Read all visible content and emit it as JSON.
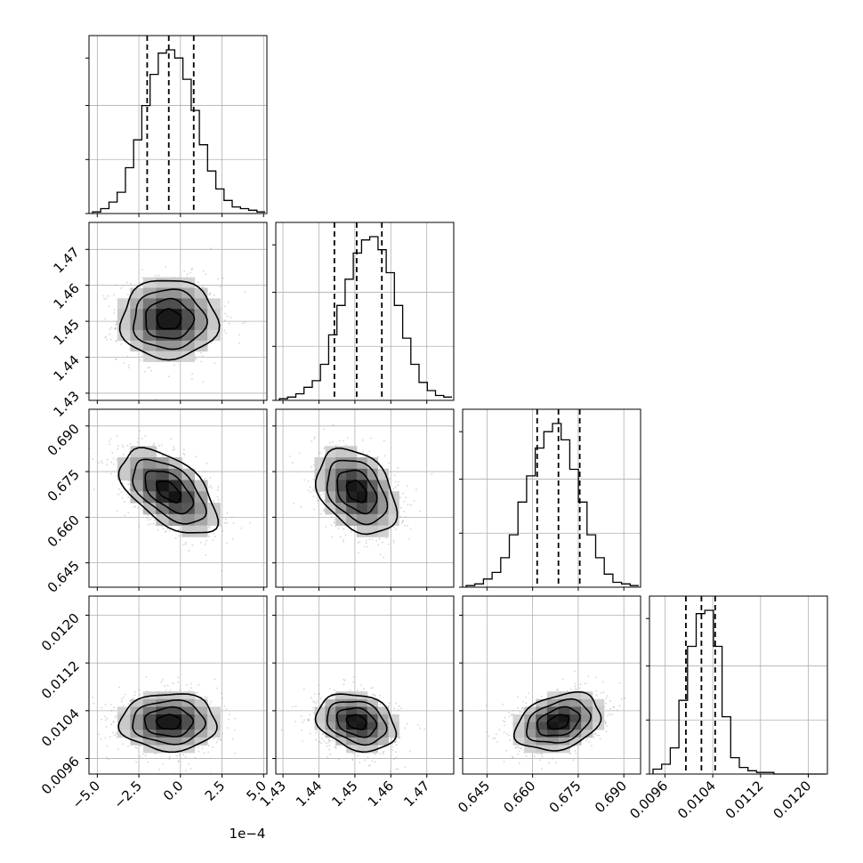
{
  "chart_data": {
    "type": "corner",
    "title": "",
    "grid": true,
    "parameters": [
      {
        "index": 0,
        "range": [
          -5.5,
          5.2
        ],
        "ticks": [
          -5,
          -2.5,
          0,
          2.5,
          5
        ],
        "tick_labels": [
          "−5.0",
          "−2.5",
          "0.0",
          "2.5",
          "5.0"
        ],
        "offset_label": "1e−4",
        "mean": -0.7,
        "quantiles": [
          -2.0,
          -0.7,
          0.8
        ],
        "sigma": 1.45,
        "hist": [
          0.01,
          0.03,
          0.07,
          0.13,
          0.28,
          0.45,
          0.66,
          0.85,
          0.98,
          1.0,
          0.95,
          0.82,
          0.63,
          0.42,
          0.26,
          0.15,
          0.08,
          0.04,
          0.03,
          0.02,
          0.01
        ]
      },
      {
        "index": 1,
        "range": [
          1.428,
          1.4775
        ],
        "ticks": [
          1.43,
          1.44,
          1.45,
          1.46,
          1.47
        ],
        "tick_labels": [
          "1.43",
          "1.44",
          "1.45",
          "1.46",
          "1.47"
        ],
        "mean": 1.4505,
        "quantiles": [
          1.4443,
          1.4505,
          1.4575
        ],
        "sigma": 0.0055,
        "hist": [
          0.01,
          0.02,
          0.04,
          0.08,
          0.12,
          0.22,
          0.4,
          0.58,
          0.74,
          0.9,
          0.98,
          1.0,
          0.92,
          0.78,
          0.58,
          0.38,
          0.22,
          0.11,
          0.06,
          0.03,
          0.02
        ]
      },
      {
        "index": 2,
        "range": [
          0.637,
          0.6955
        ],
        "ticks": [
          0.645,
          0.66,
          0.675,
          0.69
        ],
        "tick_labels": [
          "0.645",
          "0.660",
          "0.675",
          "0.690"
        ],
        "mean": 0.6685,
        "quantiles": [
          0.6615,
          0.6685,
          0.6755
        ],
        "sigma": 0.007,
        "hist": [
          0.01,
          0.02,
          0.05,
          0.09,
          0.18,
          0.32,
          0.52,
          0.68,
          0.85,
          0.95,
          1.0,
          0.9,
          0.72,
          0.52,
          0.32,
          0.18,
          0.08,
          0.03,
          0.02,
          0.01
        ]
      },
      {
        "index": 3,
        "range": [
          0.00934,
          0.01232
        ],
        "ticks": [
          0.0096,
          0.0104,
          0.0112,
          0.012
        ],
        "tick_labels": [
          "0.0096",
          "0.0104",
          "0.0112",
          "0.0120"
        ],
        "mean": 0.01021,
        "quantiles": [
          0.00995,
          0.01021,
          0.01044
        ],
        "sigma": 0.00024,
        "hist": [
          0.03,
          0.06,
          0.16,
          0.45,
          0.78,
          0.98,
          1.0,
          0.78,
          0.35,
          0.1,
          0.04,
          0.02,
          0.01,
          0.01,
          0.0,
          0.0,
          0.0,
          0.0,
          0.0,
          0.0
        ]
      }
    ],
    "correlations": {
      "0-1": 0.0,
      "0-2": -0.55,
      "0-3": 0.0,
      "1-2": -0.35,
      "1-3": -0.25,
      "2-3": 0.3
    },
    "colors": {
      "line": "#000000",
      "hist": "#000000",
      "samples": "#a0a0a0",
      "grid": "#b0b0b0"
    }
  }
}
